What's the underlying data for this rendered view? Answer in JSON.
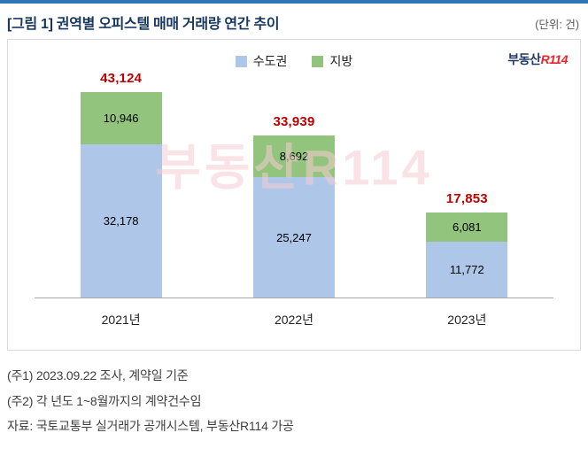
{
  "header": {
    "title": "[그림 1] 권역별 오피스텔 매매 거래량 연간 추이",
    "unit": "(단위: 건)"
  },
  "legend": [
    {
      "label": "수도권",
      "color": "#aec6e8"
    },
    {
      "label": "지방",
      "color": "#93c47d"
    }
  ],
  "logo": {
    "kr": "부동산",
    "r": "R114"
  },
  "watermark": "부동산R114",
  "chart_data": {
    "type": "bar",
    "stacked": true,
    "title": "권역별 오피스텔 매매 거래량 연간 추이",
    "unit": "건",
    "categories": [
      "2021년",
      "2022년",
      "2023년"
    ],
    "series": [
      {
        "name": "수도권",
        "color": "#aec6e8",
        "values": [
          32178,
          25247,
          11772
        ],
        "labels": [
          "32,178",
          "25,247",
          "11,772"
        ]
      },
      {
        "name": "지방",
        "color": "#93c47d",
        "values": [
          10946,
          8692,
          6081
        ],
        "labels": [
          "10,946",
          "8,692",
          "6,081"
        ]
      }
    ],
    "totals": [
      43124,
      33939,
      17853
    ],
    "total_labels": [
      "43,124",
      "33,939",
      "17,853"
    ],
    "ylim": [
      0,
      45000
    ],
    "legend_position": "top-center",
    "grid": false,
    "total_label_color": "#c00000"
  },
  "notes": [
    "(주1) 2023.09.22 조사, 계약일 기준",
    "(주2) 각 년도 1~8월까지의 계약건수임",
    "자료: 국토교통부 실거래가 공개시스템, 부동산R114 가공"
  ]
}
